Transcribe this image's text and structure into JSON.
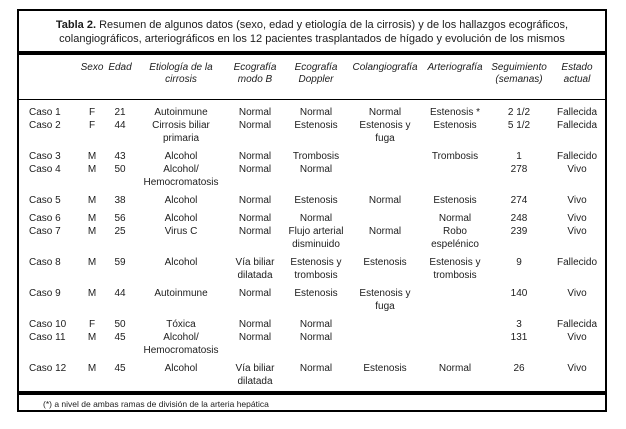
{
  "colors": {
    "rule": "#000000",
    "text": "#1c1c1c",
    "background": "#ffffff"
  },
  "table": {
    "title_bold": "Tabla 2.",
    "title_rest": " Resumen de algunos datos (sexo, edad y etiología de la cirrosis) y de los hallazgos ecográficos, colangiográficos, arteriográficos en los 12 pacientes trasplantados de hígado y evolución de los mismos",
    "columns": [
      "",
      "Sexo",
      "Edad",
      "Etiología de la cirrosis",
      "Ecografía modo B",
      "Ecografía Doppler",
      "Colangiografía",
      "Arteriografía",
      "Seguimiento (semanas)",
      "Estado actual"
    ],
    "column_keys": [
      "caso",
      "sexo",
      "edad",
      "etiologia",
      "ecografia-modo-b",
      "ecografia-doppler",
      "colangiografia",
      "arteriografia",
      "seguimiento",
      "estado"
    ],
    "rows": [
      {
        "spacer": false,
        "cells": [
          "Caso 1",
          "F",
          "21",
          "Autoinmune",
          "Normal",
          "Normal",
          "Normal",
          "Estenosis *",
          "2 1/2",
          "Fallecida"
        ]
      },
      {
        "spacer": false,
        "cells": [
          "Caso 2",
          "F",
          "44",
          "Cirrosis biliar primaria",
          "Normal",
          "Estenosis",
          "Estenosis y fuga",
          "Estenosis",
          "5 1/2",
          "Fallecida"
        ]
      },
      {
        "spacer": true,
        "cells": [
          "Caso 3",
          "M",
          "43",
          "Alcohol",
          "Normal",
          "Trombosis",
          "",
          "Trombosis",
          "1",
          "Fallecido"
        ]
      },
      {
        "spacer": false,
        "cells": [
          "Caso 4",
          "M",
          "50",
          "Alcohol/ Hemocromatosis",
          "Normal",
          "Normal",
          "",
          "",
          "278",
          "Vivo"
        ]
      },
      {
        "spacer": true,
        "cells": [
          "Caso 5",
          "M",
          "38",
          "Alcohol",
          "Normal",
          "Estenosis",
          "Normal",
          "Estenosis",
          "274",
          "Vivo"
        ]
      },
      {
        "spacer": true,
        "cells": [
          "Caso 6",
          "M",
          "56",
          "Alcohol",
          "Normal",
          "Normal",
          "",
          "Normal",
          "248",
          "Vivo"
        ]
      },
      {
        "spacer": false,
        "cells": [
          "Caso 7",
          "M",
          "25",
          "Virus C",
          "Normal",
          "Flujo arterial disminuido",
          "Normal",
          "Robo espelénico",
          "239",
          "Vivo"
        ]
      },
      {
        "spacer": true,
        "cells": [
          "Caso 8",
          "M",
          "59",
          "Alcohol",
          "Vía biliar dilatada",
          "Estenosis y trombosis",
          "Estenosis",
          "Estenosis y trombosis",
          "9",
          "Fallecido"
        ]
      },
      {
        "spacer": true,
        "cells": [
          "Caso 9",
          "M",
          "44",
          "Autoinmune",
          "Normal",
          "Estenosis",
          "Estenosis y fuga",
          "",
          "140",
          "Vivo"
        ]
      },
      {
        "spacer": true,
        "cells": [
          "Caso 10",
          "F",
          "50",
          "Tóxica",
          "Normal",
          "Normal",
          "",
          "",
          "3",
          "Fallecida"
        ]
      },
      {
        "spacer": false,
        "cells": [
          "Caso 11",
          "M",
          "45",
          "Alcohol/ Hemocromatosis",
          "Normal",
          "Normal",
          "",
          "",
          "131",
          "Vivo"
        ]
      },
      {
        "spacer": true,
        "cells": [
          "Caso 12",
          "M",
          "45",
          "Alcohol",
          "Vía biliar dilatada",
          "Normal",
          "Estenosis",
          "Normal",
          "26",
          "Vivo"
        ]
      }
    ],
    "footnote": "(*) a nivel de ambas ramas de división de la arteria hepática"
  }
}
